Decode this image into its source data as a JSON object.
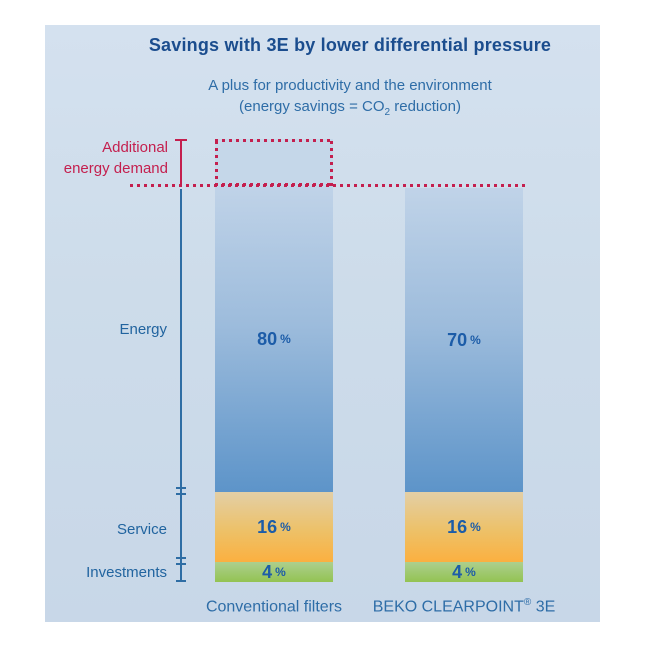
{
  "header": {
    "title": "Savings with 3E by lower differential pressure",
    "subtitle_line1": "A plus for productivity and the environment",
    "subtitle_line2_prefix": "(energy savings = CO",
    "subtitle_line2_subscript": "2",
    "subtitle_line2_suffix": " reduction)"
  },
  "annotation": {
    "line1": "Additional",
    "line2": "energy demand"
  },
  "row_labels": {
    "energy": "Energy",
    "service": "Service",
    "investments": "Investments"
  },
  "percent_sign": "%",
  "bars": [
    {
      "name_prefix": "Conventional filters",
      "name_sup": "",
      "name_suffix": "",
      "energy_value": "80",
      "service_value": "16",
      "investments_value": "4"
    },
    {
      "name_prefix": "BEKO CLEARPOINT",
      "name_sup": "®",
      "name_suffix": " 3E",
      "energy_value": "70",
      "service_value": "16",
      "investments_value": "4"
    }
  ],
  "colors": {
    "title_blue": "#1b4d8e",
    "text_blue": "#2e6da7",
    "value_blue": "#1c5ca8",
    "annotation_red": "#c41f4e",
    "axis_blue": "#2e6da4",
    "bar_energy_top": "#c0d3e8",
    "bar_energy_bottom": "#5d94c9",
    "bar_service_top": "#e3cfa6",
    "bar_service_bottom": "#fbb040",
    "bar_investments_top": "#adcf8e",
    "bar_investments_bottom": "#93c352",
    "panel_background": "#cddcea",
    "dotted_box_fill": "#c5d7e9"
  },
  "chart_data": {
    "type": "bar",
    "subtype": "stacked_percentage_columns",
    "title": "Savings with 3E by lower differential pressure",
    "subtitle": "A plus for productivity and the environment (energy savings = CO2 reduction)",
    "categories": [
      "Conventional filters",
      "BEKO CLEARPOINT® 3E"
    ],
    "series": [
      {
        "name": "Energy",
        "values": [
          80,
          70
        ],
        "unit": "%"
      },
      {
        "name": "Service",
        "values": [
          16,
          16
        ],
        "unit": "%"
      },
      {
        "name": "Investments",
        "values": [
          4,
          4
        ],
        "unit": "%"
      }
    ],
    "annotations": [
      {
        "text": "Additional energy demand",
        "applies_to": "Conventional filters",
        "style": "red dotted box above the Conventional filters column with red dotted reference line across both columns",
        "color": "#c41f4e"
      }
    ],
    "legend_position": "row labels on left axis",
    "grid": false,
    "ylim": [
      0,
      105
    ]
  }
}
